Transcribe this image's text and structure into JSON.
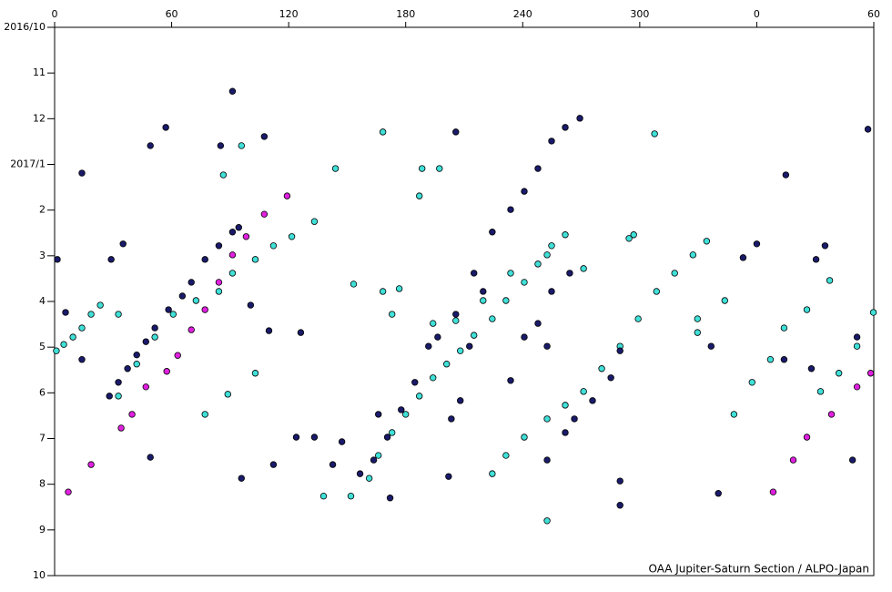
{
  "chart_data": {
    "type": "scatter",
    "footer": "OAA Jupiter-Saturn Section / ALPO-Japan",
    "xlim": [
      0,
      420
    ],
    "xticks": [
      0,
      60,
      120,
      180,
      240,
      300,
      {
        "value": 360,
        "label": "0"
      },
      {
        "value": 420,
        "label": "60"
      }
    ],
    "ylim": [
      12,
      0
    ],
    "yticks": [
      {
        "value": 0,
        "label": "2016/10"
      },
      {
        "value": 1,
        "label": "11"
      },
      {
        "value": 2,
        "label": "12"
      },
      {
        "value": 3,
        "label": "2017/1"
      },
      {
        "value": 4,
        "label": "2"
      },
      {
        "value": 5,
        "label": "3"
      },
      {
        "value": 6,
        "label": "4"
      },
      {
        "value": 7,
        "label": "5"
      },
      {
        "value": 8,
        "label": "6"
      },
      {
        "value": 9,
        "label": "7"
      },
      {
        "value": 10,
        "label": "8"
      },
      {
        "value": 11,
        "label": "9"
      },
      {
        "value": 12,
        "label": "10"
      }
    ],
    "grid": false,
    "series": [
      {
        "color": "#e020e0",
        "x": [
          7.0,
          18.7,
          34.1,
          39.7,
          46.8,
          57.5,
          63.1,
          70.1,
          77.1,
          84.2,
          91.2,
          98.2,
          107.5,
          119.2,
          368.4,
          378.7,
          385.7,
          398.3,
          411.4,
          418.4
        ],
        "values": [
          10.17,
          9.57,
          8.77,
          8.47,
          7.87,
          7.53,
          7.18,
          6.62,
          6.18,
          5.58,
          4.98,
          4.58,
          4.09,
          3.69,
          10.17,
          9.47,
          8.97,
          8.47,
          7.87,
          7.57
        ]
      },
      {
        "color": "#40e0d8",
        "x": [
          0.9,
          4.7,
          9.4,
          14.0,
          18.7,
          23.4,
          32.7,
          32.7,
          42.1,
          51.4,
          60.8,
          72.5,
          84.2,
          91.2,
          102.9,
          112.2,
          121.6,
          133.2,
          166.0,
          173.0,
          180.0,
          187.0,
          194.0,
          201.0,
          208.0,
          215.0,
          224.4,
          231.4,
          240.8,
          247.8,
          254.8,
          261.8,
          224.4,
          231.4,
          240.8,
          252.5,
          261.8,
          271.2,
          280.5,
          289.9,
          299.2,
          308.6,
          317.9,
          327.3,
          334.3,
          173.0,
          194.0,
          205.7,
          219.7,
          233.8,
          252.5,
          271.2,
          294.5,
          296.9,
          86.5,
          95.8,
          168.3,
          144.0,
          188.4,
          197.3,
          187.0,
          307.6,
          137.9,
          151.9,
          161.3,
          252.5,
          153.3,
          168.3,
          176.7,
          88.8,
          77.1,
          102.9,
          329.6,
          343.6,
          397.4,
          385.7,
          329.6,
          348.3,
          357.6,
          367.0,
          374.0,
          392.7,
          402.1,
          411.4,
          419.8
        ],
        "values": [
          7.08,
          6.94,
          6.78,
          6.58,
          6.28,
          6.08,
          6.28,
          8.07,
          7.37,
          6.78,
          6.28,
          5.98,
          5.78,
          5.38,
          5.08,
          4.78,
          4.58,
          4.25,
          9.37,
          8.87,
          8.47,
          8.07,
          7.67,
          7.37,
          7.08,
          6.74,
          6.38,
          5.98,
          5.58,
          5.18,
          4.78,
          4.54,
          9.77,
          9.37,
          8.97,
          8.57,
          8.27,
          7.97,
          7.47,
          6.98,
          6.38,
          5.78,
          5.38,
          4.98,
          4.68,
          6.28,
          6.48,
          6.42,
          5.98,
          5.38,
          4.98,
          5.28,
          4.62,
          4.54,
          3.23,
          2.59,
          2.29,
          3.09,
          3.09,
          3.09,
          3.69,
          2.33,
          10.26,
          10.26,
          9.87,
          10.8,
          5.62,
          5.78,
          5.72,
          8.03,
          8.47,
          7.57,
          6.38,
          5.98,
          5.54,
          6.18,
          6.68,
          8.47,
          7.77,
          7.27,
          6.58,
          7.97,
          7.57,
          6.98,
          6.24
        ]
      },
      {
        "color": "#1a1a6a",
        "x": [
          28.1,
          32.7,
          37.4,
          42.1,
          46.8,
          51.4,
          58.4,
          65.5,
          70.1,
          77.1,
          84.2,
          91.2,
          94.4,
          156.6,
          163.6,
          170.6,
          177.7,
          184.7,
          191.7,
          196.4,
          205.7,
          215.0,
          224.4,
          233.8,
          240.8,
          247.8,
          254.8,
          261.8,
          269.3,
          252.5,
          261.8,
          266.5,
          275.8,
          285.2,
          289.9,
          203.4,
          208.0,
          212.7,
          219.7,
          240.8,
          247.8,
          254.8,
          264.1,
          14.0,
          49.1,
          57.0,
          85.1,
          107.5,
          91.2,
          205.7,
          166.0,
          252.5,
          233.8,
          289.9,
          289.9,
          340.3,
          374.9,
          336.6,
          353.0,
          360.0,
          95.8,
          112.2,
          123.9,
          133.2,
          142.6,
          147.3,
          109.9,
          126.2,
          100.5,
          29.0,
          35.1,
          1.4,
          5.6,
          14.0,
          49.1,
          172.0,
          202.0,
          374.0,
          388.0,
          409.1,
          411.4,
          395.0,
          390.4,
          417.0
        ],
        "values": [
          8.07,
          7.77,
          7.47,
          7.17,
          6.88,
          6.58,
          6.18,
          5.88,
          5.58,
          5.08,
          4.78,
          4.48,
          4.38,
          9.77,
          9.47,
          8.97,
          8.37,
          7.77,
          6.98,
          6.78,
          6.28,
          5.38,
          4.48,
          3.99,
          3.59,
          3.09,
          2.49,
          2.19,
          1.99,
          9.47,
          8.87,
          8.57,
          8.17,
          7.67,
          7.08,
          8.57,
          8.17,
          6.98,
          5.78,
          6.78,
          6.48,
          5.78,
          5.38,
          3.19,
          2.59,
          2.19,
          2.59,
          2.39,
          1.4,
          2.29,
          8.47,
          6.98,
          7.73,
          9.93,
          10.46,
          10.2,
          3.23,
          6.98,
          5.04,
          4.74,
          9.87,
          9.57,
          8.97,
          8.97,
          9.57,
          9.07,
          6.64,
          6.68,
          6.08,
          5.08,
          4.74,
          5.08,
          6.24,
          7.27,
          9.41,
          10.3,
          9.83,
          7.27,
          7.47,
          9.47,
          6.78,
          4.78,
          5.08,
          2.23
        ]
      }
    ]
  }
}
